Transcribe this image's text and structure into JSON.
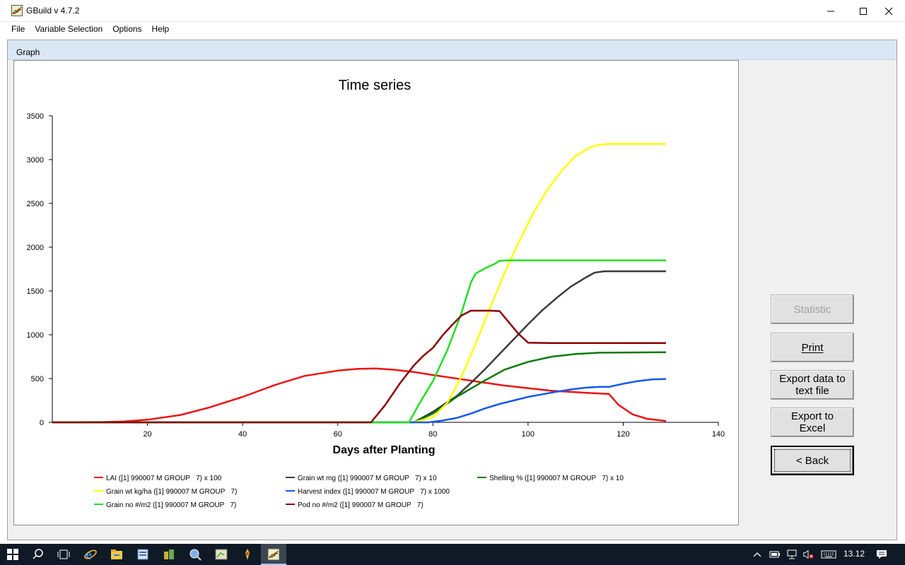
{
  "window": {
    "title": "GBuild v 4.7.2",
    "minimize_icon": "minimize-icon",
    "maximize_icon": "maximize-icon",
    "close_icon": "close-icon"
  },
  "menu": [
    {
      "label": "File"
    },
    {
      "label": "Variable Selection"
    },
    {
      "label": "Options"
    },
    {
      "label": "Help"
    }
  ],
  "graph_tab": {
    "label": "Graph"
  },
  "buttons": {
    "statistic": "Statistic",
    "print": "Print",
    "export_text_line1": "Export data to",
    "export_text_line2": "text file",
    "export_excel_line1": "Export to",
    "export_excel_line2": "Excel",
    "back": "< Back"
  },
  "taskbar": {
    "clock": "13.12",
    "icons": [
      "windows-start-icon",
      "search-icon",
      "task-view-icon",
      "internet-explorer-icon",
      "file-explorer-icon",
      "app-icon-1",
      "app-icon-2",
      "app-icon-3",
      "app-icon-4",
      "app-icon-5",
      "gbuild-taskbar-icon"
    ],
    "tray_icons": [
      "chevron-up-icon",
      "battery-icon",
      "network-icon",
      "volume-muted-icon",
      "keyboard-icon",
      "notification-icon"
    ]
  },
  "chart_data": {
    "type": "line",
    "title": "Time series",
    "xlabel": "Days after Planting",
    "ylabel": "",
    "xlim": [
      0,
      140
    ],
    "ylim": [
      0,
      3500
    ],
    "xticks": [
      20,
      40,
      60,
      80,
      100,
      120,
      140
    ],
    "yticks": [
      0,
      500,
      1000,
      1500,
      2000,
      2500,
      3000,
      3500
    ],
    "grid": false,
    "legend_position": "bottom",
    "series": [
      {
        "name": "LAI ([1] 990007 M GROUP   7) x 100",
        "color": "#ee1111",
        "x": [
          0,
          10,
          15,
          20,
          27,
          33,
          40,
          47,
          53,
          60,
          64,
          68,
          72,
          76,
          80,
          85,
          90,
          95,
          100,
          105,
          110,
          113,
          117,
          119,
          122,
          125,
          129
        ],
        "y": [
          0,
          3,
          10,
          30,
          85,
          170,
          290,
          430,
          530,
          590,
          610,
          615,
          600,
          575,
          540,
          500,
          460,
          420,
          390,
          360,
          345,
          335,
          325,
          200,
          90,
          40,
          15
        ]
      },
      {
        "name": "Grain wt mg ([1] 990007 M GROUP   7) x 10",
        "color": "#3c3c3c",
        "x": [
          0,
          76,
          80,
          85,
          88,
          91,
          94,
          97,
          100,
          103,
          106,
          109,
          112,
          114,
          116,
          129
        ],
        "y": [
          0,
          0,
          120,
          300,
          450,
          610,
          780,
          950,
          1120,
          1280,
          1420,
          1550,
          1650,
          1710,
          1725,
          1725
        ]
      },
      {
        "name": "Shelling % ([1] 990007 M GROUP   7) x 10",
        "color": "#0a7a0a",
        "x": [
          0,
          76,
          80,
          85,
          90,
          95,
          100,
          105,
          110,
          115,
          129
        ],
        "y": [
          0,
          0,
          100,
          290,
          450,
          600,
          690,
          750,
          780,
          795,
          800
        ]
      },
      {
        "name": "Grain wt kg/ha ([1] 990007 M GROUP   7)",
        "color": "#ffff00",
        "x": [
          0,
          76,
          80,
          83,
          86,
          89,
          92,
          95,
          98,
          101,
          104,
          107,
          110,
          113,
          115,
          117,
          129
        ],
        "y": [
          0,
          0,
          60,
          220,
          520,
          900,
          1300,
          1700,
          2050,
          2380,
          2650,
          2870,
          3040,
          3140,
          3170,
          3180,
          3180
        ]
      },
      {
        "name": "Harvest index ([1] 990007 M GROUP   7) x 1000",
        "color": "#1158ee",
        "x": [
          0,
          79,
          82,
          85,
          88,
          91,
          94,
          97,
          100,
          103,
          106,
          109,
          112,
          115,
          117,
          120,
          123,
          126,
          129
        ],
        "y": [
          0,
          0,
          20,
          50,
          100,
          160,
          210,
          250,
          290,
          320,
          350,
          375,
          395,
          405,
          405,
          440,
          470,
          490,
          495
        ]
      },
      {
        "name": "Grain no #/m2 ([1] 990007 M GROUP   7)",
        "color": "#22e022",
        "x": [
          0,
          75,
          77,
          80,
          83,
          86,
          88,
          89,
          91,
          93,
          94,
          96,
          100,
          110,
          129
        ],
        "y": [
          0,
          0,
          200,
          470,
          820,
          1250,
          1600,
          1700,
          1760,
          1810,
          1845,
          1850,
          1850,
          1850,
          1850
        ]
      },
      {
        "name": "Pod no #/m2 ([1] 990007 M GROUP   7)",
        "color": "#880000",
        "x": [
          0,
          67,
          70,
          73,
          76,
          78,
          80,
          82,
          84,
          86,
          88,
          90,
          92,
          94,
          96,
          98,
          100,
          105,
          129
        ],
        "y": [
          0,
          0,
          200,
          440,
          650,
          760,
          850,
          990,
          1110,
          1220,
          1275,
          1275,
          1275,
          1270,
          1140,
          1010,
          910,
          905,
          905
        ]
      }
    ]
  }
}
